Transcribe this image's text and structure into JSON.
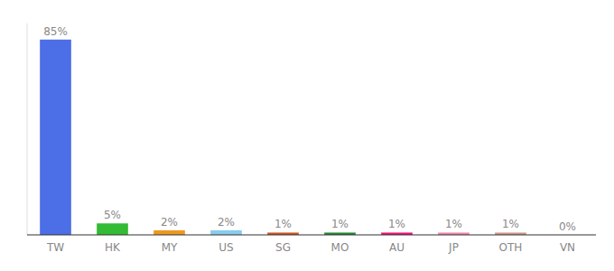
{
  "chart_data": {
    "type": "bar",
    "categories": [
      "TW",
      "HK",
      "MY",
      "US",
      "SG",
      "MO",
      "AU",
      "JP",
      "OTH",
      "VN"
    ],
    "values": [
      85,
      5,
      2,
      2,
      1,
      1,
      1,
      1,
      1,
      0
    ],
    "value_labels": [
      "85%",
      "5%",
      "2%",
      "2%",
      "1%",
      "1%",
      "1%",
      "1%",
      "1%",
      "0%"
    ],
    "colors": [
      "#4C6EE6",
      "#33BB33",
      "#EE9922",
      "#88CCEE",
      "#CC5522",
      "#228833",
      "#EE1177",
      "#EE88AA",
      "#CC9988",
      "#CCCCCC"
    ],
    "ylim": [
      0,
      92
    ],
    "data_labels": true,
    "tick_labels": "x"
  }
}
